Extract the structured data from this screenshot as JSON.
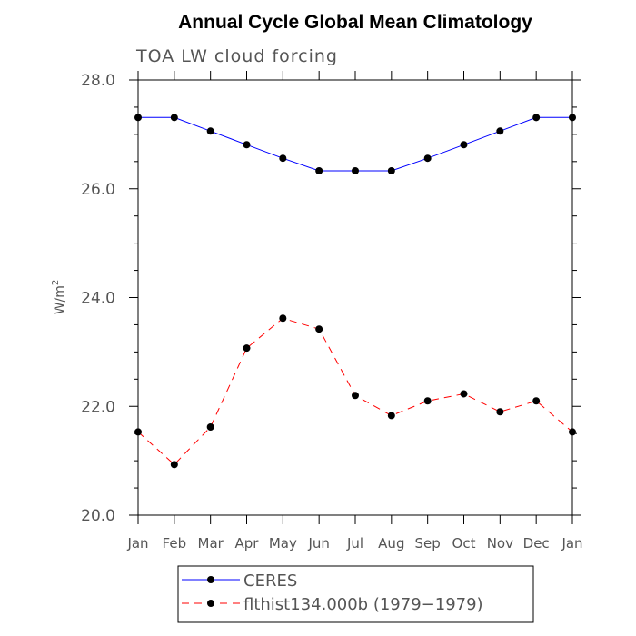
{
  "chart_data": {
    "type": "line",
    "title": "Annual Cycle Global Mean Climatology",
    "subtitle": "TOA LW cloud forcing",
    "xlabel": "",
    "ylabel": "W/m",
    "ylabel_sup": "2",
    "categories": [
      "Jan",
      "Feb",
      "Mar",
      "Apr",
      "May",
      "Jun",
      "Jul",
      "Aug",
      "Sep",
      "Oct",
      "Nov",
      "Dec",
      "Jan"
    ],
    "ylim": [
      20.0,
      28.0
    ],
    "yticks": [
      20.0,
      22.0,
      24.0,
      26.0,
      28.0
    ],
    "ytick_labels": [
      "20.0",
      "22.0",
      "24.0",
      "26.0",
      "28.0"
    ],
    "series": [
      {
        "name": "CERES",
        "color": "#0000ff",
        "dash": "solid",
        "values": [
          27.31,
          27.31,
          27.06,
          26.81,
          26.56,
          26.33,
          26.33,
          26.33,
          26.56,
          26.81,
          27.06,
          27.31,
          27.31
        ]
      },
      {
        "name": "flthist134.000b (1979−1979)",
        "color": "#ff0000",
        "dash": "dashed",
        "values": [
          21.53,
          20.93,
          21.62,
          23.07,
          23.62,
          23.42,
          22.2,
          21.83,
          22.1,
          22.23,
          21.9,
          22.1,
          21.53
        ]
      }
    ],
    "legend_position": "bottom",
    "grid": false
  }
}
